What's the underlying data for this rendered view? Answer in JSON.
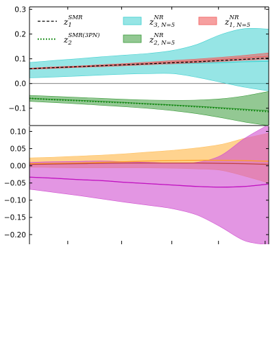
{
  "chart_data": [
    {
      "type": "line",
      "title": "",
      "xlabel": "",
      "ylabel": "",
      "ylim": [
        -0.17,
        0.31
      ],
      "y_ticks": [
        -0.1,
        0.0,
        0.1,
        0.2,
        0.3
      ],
      "y_tick_labels": [
        "−0.1",
        "0.0",
        "0.1",
        "0.2",
        "0.3"
      ],
      "xlim": [
        0,
        1
      ],
      "x_tick_labels_shown": false,
      "grid": false,
      "zero_line": true,
      "legend_placement": "top, three columns",
      "series": [
        {
          "name_base": "z",
          "name_sub": "1",
          "name_sup": "SMR",
          "kind": "line",
          "style": "dashed",
          "color": "#000000",
          "x": [
            0,
            0.1,
            0.2,
            0.3,
            0.4,
            0.5,
            0.6,
            0.7,
            0.8,
            0.9,
            1.0
          ],
          "y": [
            0.06,
            0.064,
            0.068,
            0.072,
            0.076,
            0.08,
            0.084,
            0.088,
            0.093,
            0.098,
            0.103
          ]
        },
        {
          "name_base": "z",
          "name_sub": "2",
          "name_sup": "SMR(3PN)",
          "kind": "line",
          "style": "dotted",
          "color": "#008000",
          "x": [
            0,
            0.1,
            0.2,
            0.3,
            0.4,
            0.5,
            0.6,
            0.7,
            0.8,
            0.9,
            1.0
          ],
          "y": [
            -0.06,
            -0.065,
            -0.069,
            -0.074,
            -0.078,
            -0.083,
            -0.088,
            -0.094,
            -0.1,
            -0.107,
            -0.114
          ]
        },
        {
          "name_base": "z",
          "name_sub": "3, N=5",
          "name_sup": "NR",
          "kind": "band",
          "color": "#40d0d0",
          "opacity": 0.55,
          "x": [
            0,
            0.1,
            0.2,
            0.3,
            0.4,
            0.5,
            0.6,
            0.7,
            0.8,
            0.9,
            1.0
          ],
          "center": [
            0.058,
            0.062,
            0.066,
            0.07,
            0.074,
            0.078,
            0.08,
            0.082,
            0.084,
            0.088,
            0.09
          ],
          "upper": [
            0.085,
            0.093,
            0.1,
            0.108,
            0.115,
            0.122,
            0.134,
            0.158,
            0.198,
            0.222,
            0.22
          ],
          "lower": [
            0.023,
            0.026,
            0.03,
            0.034,
            0.038,
            0.04,
            0.04,
            0.025,
            0.005,
            -0.015,
            -0.03
          ]
        },
        {
          "name_base": "z",
          "name_sub": "1, N=5",
          "name_sup": "NR",
          "kind": "band",
          "color": "#f06060",
          "opacity": 0.6,
          "x": [
            0,
            0.1,
            0.2,
            0.3,
            0.4,
            0.5,
            0.6,
            0.7,
            0.8,
            0.9,
            1.0
          ],
          "center": [
            0.06,
            0.064,
            0.068,
            0.072,
            0.077,
            0.082,
            0.087,
            0.092,
            0.098,
            0.104,
            0.11
          ],
          "upper": [
            0.062,
            0.067,
            0.071,
            0.076,
            0.081,
            0.087,
            0.093,
            0.099,
            0.106,
            0.114,
            0.124
          ],
          "lower": [
            0.058,
            0.061,
            0.065,
            0.068,
            0.072,
            0.076,
            0.08,
            0.084,
            0.089,
            0.094,
            0.098
          ]
        },
        {
          "name_base": "z",
          "name_sub": "2, N=5",
          "name_sup": "NR",
          "kind": "band",
          "color": "#3a9a3a",
          "opacity": 0.55,
          "x": [
            0,
            0.1,
            0.2,
            0.3,
            0.4,
            0.5,
            0.6,
            0.7,
            0.8,
            0.9,
            1.0
          ],
          "center": [
            -0.06,
            -0.064,
            -0.068,
            -0.072,
            -0.077,
            -0.082,
            -0.087,
            -0.092,
            -0.098,
            -0.104,
            -0.11
          ],
          "upper": [
            -0.048,
            -0.052,
            -0.056,
            -0.06,
            -0.064,
            -0.067,
            -0.068,
            -0.067,
            -0.062,
            -0.05,
            -0.032
          ],
          "lower": [
            -0.072,
            -0.077,
            -0.082,
            -0.088,
            -0.094,
            -0.101,
            -0.11,
            -0.122,
            -0.138,
            -0.156,
            -0.17
          ]
        }
      ]
    },
    {
      "type": "line",
      "title": "",
      "xlabel": "",
      "ylabel": "",
      "ylim": [
        -0.228,
        0.115
      ],
      "y_ticks": [
        -0.2,
        -0.15,
        -0.1,
        -0.05,
        0.0,
        0.05,
        0.1
      ],
      "y_tick_labels": [
        "−0.20",
        "−0.15",
        "−0.10",
        "−0.05",
        "0.00",
        "0.05",
        "0.10"
      ],
      "xlim": [
        0,
        1
      ],
      "x_tick_labels_shown": false,
      "grid": false,
      "legend_placement": "none",
      "series": [
        {
          "kind": "band",
          "color": "#ffc060",
          "opacity": 0.7,
          "x": [
            0,
            0.1,
            0.2,
            0.3,
            0.4,
            0.5,
            0.6,
            0.7,
            0.8,
            0.9,
            1.0
          ],
          "center": [
            0.006,
            0.007,
            0.008,
            0.01,
            0.012,
            0.014,
            0.015,
            0.016,
            0.016,
            0.015,
            0.013
          ],
          "upper": [
            0.023,
            0.025,
            0.028,
            0.031,
            0.035,
            0.04,
            0.045,
            0.052,
            0.062,
            0.08,
            0.095
          ],
          "lower": [
            -0.004,
            -0.005,
            -0.006,
            -0.006,
            -0.006,
            -0.006,
            -0.007,
            -0.009,
            -0.013,
            -0.03,
            -0.05
          ]
        },
        {
          "kind": "band",
          "color": "#d050d0",
          "opacity": 0.6,
          "x": [
            0,
            0.1,
            0.2,
            0.3,
            0.4,
            0.5,
            0.6,
            0.7,
            0.8,
            0.9,
            1.0
          ],
          "center": [
            -0.033,
            -0.036,
            -0.04,
            -0.043,
            -0.048,
            -0.052,
            -0.056,
            -0.06,
            -0.062,
            -0.06,
            -0.053
          ],
          "upper": [
            0.01,
            0.012,
            0.013,
            0.014,
            0.012,
            0.01,
            0.008,
            0.01,
            0.03,
            0.08,
            0.12
          ],
          "lower": [
            -0.068,
            -0.077,
            -0.086,
            -0.096,
            -0.106,
            -0.115,
            -0.125,
            -0.143,
            -0.178,
            -0.218,
            -0.23
          ]
        },
        {
          "kind": "line",
          "style": "solid",
          "color": "#ffa020",
          "x": [
            0,
            0.1,
            0.2,
            0.3,
            0.4,
            0.5,
            0.6,
            0.7,
            0.8,
            0.9,
            1.0
          ],
          "y": [
            0.006,
            0.007,
            0.008,
            0.01,
            0.012,
            0.014,
            0.015,
            0.016,
            0.016,
            0.015,
            0.013
          ]
        },
        {
          "kind": "line",
          "style": "solid",
          "color": "#c010c0",
          "x": [
            0,
            0.1,
            0.2,
            0.3,
            0.4,
            0.5,
            0.6,
            0.7,
            0.8,
            0.9,
            1.0
          ],
          "y": [
            -0.033,
            -0.036,
            -0.04,
            -0.043,
            -0.048,
            -0.052,
            -0.056,
            -0.06,
            -0.062,
            -0.06,
            -0.053
          ]
        },
        {
          "kind": "line",
          "style": "solid",
          "color": "#c04040",
          "x": [
            0,
            0.1,
            0.2,
            0.3,
            0.4,
            0.5,
            0.6,
            0.7,
            0.8,
            0.9,
            1.0
          ],
          "y": [
            0.004,
            0.005,
            0.006,
            0.007,
            0.008,
            0.008,
            0.008,
            0.008,
            0.007,
            0.006,
            0.004
          ]
        }
      ]
    }
  ]
}
